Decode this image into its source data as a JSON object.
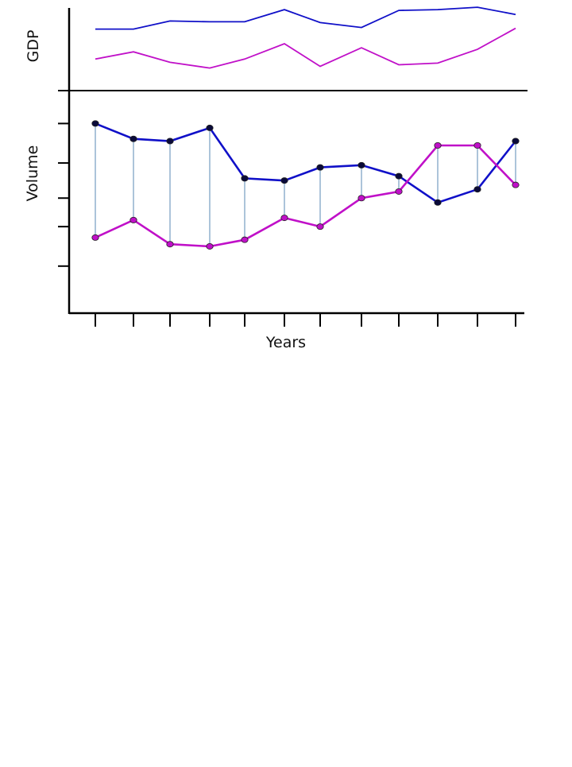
{
  "chart_data": [
    {
      "type": "line",
      "panel": "top",
      "title": "",
      "xlabel": "",
      "ylabel": "GDP",
      "x": [
        1,
        2,
        3,
        4,
        5,
        6,
        7,
        8,
        9,
        10,
        11,
        12
      ],
      "ylim": [
        0,
        100
      ],
      "grid": false,
      "legend": "none",
      "series": [
        {
          "values": [
            70,
            70,
            80,
            79,
            79,
            94,
            78,
            72,
            93,
            94,
            97,
            88
          ],
          "color": "#1010c8"
        },
        {
          "values": [
            33,
            42,
            29,
            22,
            33,
            52,
            24,
            47,
            26,
            28,
            45,
            71
          ],
          "color": "#c010c8"
        }
      ]
    },
    {
      "type": "line",
      "panel": "bottom",
      "title": "",
      "xlabel": "Years",
      "ylabel": "Volume",
      "x": [
        1,
        2,
        3,
        4,
        5,
        6,
        7,
        8,
        9,
        10,
        11,
        12
      ],
      "ylim": [
        0,
        100
      ],
      "grid": false,
      "legend": "none",
      "y_ticks": [
        20,
        38,
        51,
        67,
        85
      ],
      "series": [
        {
          "values": [
            85,
            78,
            77,
            83,
            60,
            59,
            65,
            66,
            61,
            49,
            55,
            77
          ],
          "color": "#1010c8",
          "marker": "#0a0a3a"
        },
        {
          "values": [
            33,
            41,
            30,
            29,
            32,
            42,
            38,
            51,
            54,
            75,
            75,
            57
          ],
          "color": "#c010c8",
          "marker": "#c010c8"
        }
      ],
      "connector_color": "#5a8ab4"
    }
  ]
}
